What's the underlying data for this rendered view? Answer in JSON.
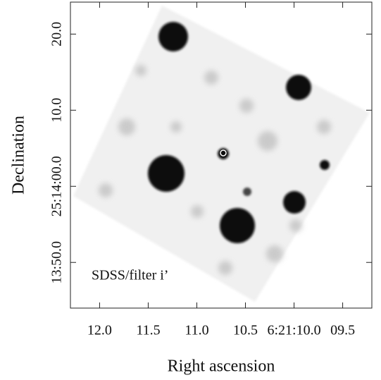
{
  "chart_data": {
    "type": "image",
    "x_label": "Right ascension",
    "y_label": "Declination",
    "annotation": "SDSS/filter i’",
    "xlim": [
      12.3,
      9.2
    ],
    "xticks": [
      {
        "value": 12.0,
        "label": "12.0"
      },
      {
        "value": 11.5,
        "label": "11.5"
      },
      {
        "value": 11.0,
        "label": "11.0"
      },
      {
        "value": 10.5,
        "label": "10.5"
      },
      {
        "value": 10.0,
        "label": "6:21:10.0"
      },
      {
        "value": 9.5,
        "label": "09.5"
      }
    ],
    "ylim": [
      -16.0,
      24.2
    ],
    "yticks": [
      {
        "value": 20,
        "label": "20.0"
      },
      {
        "value": 10,
        "label": "10.0"
      },
      {
        "value": 0,
        "label": "25:14:00.0"
      },
      {
        "value": -10,
        "label": "13:50.0"
      }
    ]
  }
}
